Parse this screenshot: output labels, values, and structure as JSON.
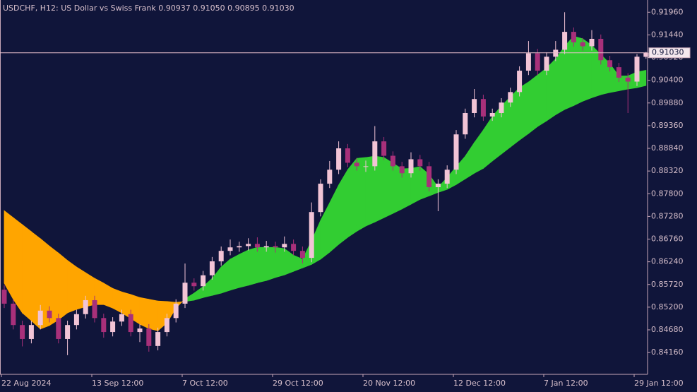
{
  "chart_data": {
    "type": "candlestick",
    "title": "USDCHF, H12:  US Dollar vs Swiss Frank  0.90937 0.91050 0.90895 0.91030",
    "categories": [
      "22 Aug 2024",
      null,
      null,
      null,
      null,
      null,
      null,
      null,
      null,
      null,
      "13 Sep 12:00",
      null,
      null,
      null,
      null,
      null,
      null,
      null,
      null,
      null,
      "7 Oct 12:00",
      null,
      null,
      null,
      null,
      null,
      null,
      null,
      null,
      null,
      "29 Oct 12:00",
      null,
      null,
      null,
      null,
      null,
      null,
      null,
      null,
      null,
      "20 Nov 12:00",
      null,
      null,
      null,
      null,
      null,
      null,
      null,
      null,
      null,
      "12 Dec 12:00",
      null,
      null,
      null,
      null,
      null,
      null,
      null,
      null,
      null,
      "7 Jan 12:00",
      null,
      null,
      null,
      null,
      null,
      null,
      null,
      null,
      null,
      "29 Jan 12:00",
      null
    ],
    "open": [
      0.856,
      0.8528,
      0.8479,
      0.8447,
      0.8479,
      0.8512,
      0.8495,
      0.8447,
      0.8479,
      0.8504,
      0.8536,
      0.8495,
      0.8463,
      0.8487,
      0.8504,
      0.8463,
      0.8471,
      0.8431,
      0.8463,
      0.8495,
      0.8528,
      0.8576,
      0.8568,
      0.8593,
      0.8625,
      0.8649,
      0.8657,
      0.866,
      0.8665,
      0.8657,
      0.866,
      0.8657,
      0.8665,
      0.8649,
      0.8633,
      0.8738,
      0.8803,
      0.8835,
      0.8884,
      0.8851,
      0.8843,
      0.8843,
      0.89,
      0.8867,
      0.8843,
      0.8827,
      0.8859,
      0.8843,
      0.8795,
      0.8803,
      0.8835,
      0.8916,
      0.8965,
      0.8997,
      0.8957,
      0.8965,
      0.8989,
      0.9013,
      0.9062,
      0.9102,
      0.9062,
      0.9094,
      0.911,
      0.9151,
      0.9127,
      0.9118,
      0.9135,
      0.9086,
      0.907,
      0.9046,
      0.9037,
      0.90937
    ],
    "high": [
      0.857,
      0.8538,
      0.8489,
      0.8489,
      0.8525,
      0.8522,
      0.8505,
      0.8489,
      0.8514,
      0.8546,
      0.8546,
      0.8505,
      0.8497,
      0.8514,
      0.8514,
      0.8481,
      0.8481,
      0.8473,
      0.8505,
      0.8538,
      0.862,
      0.8586,
      0.8603,
      0.8635,
      0.8659,
      0.8675,
      0.867,
      0.8678,
      0.868,
      0.8672,
      0.867,
      0.8682,
      0.8675,
      0.8659,
      0.876,
      0.8813,
      0.8855,
      0.89,
      0.8894,
      0.8861,
      0.8856,
      0.8935,
      0.891,
      0.8877,
      0.8853,
      0.8875,
      0.8869,
      0.8853,
      0.8813,
      0.8845,
      0.8926,
      0.8975,
      0.902,
      0.9007,
      0.8975,
      0.8999,
      0.9023,
      0.9072,
      0.913,
      0.9112,
      0.9104,
      0.913,
      0.9196,
      0.9161,
      0.9137,
      0.9155,
      0.9145,
      0.9096,
      0.908,
      0.9056,
      0.91,
      0.9105
    ],
    "low": [
      0.8518,
      0.8469,
      0.843,
      0.8437,
      0.8469,
      0.8485,
      0.8437,
      0.841,
      0.8469,
      0.8494,
      0.8485,
      0.845,
      0.8453,
      0.8477,
      0.8453,
      0.844,
      0.8418,
      0.8421,
      0.8453,
      0.8485,
      0.8518,
      0.8558,
      0.8558,
      0.8583,
      0.8615,
      0.8639,
      0.8647,
      0.865,
      0.8647,
      0.8647,
      0.8645,
      0.8647,
      0.8639,
      0.862,
      0.8623,
      0.8728,
      0.8793,
      0.8825,
      0.8841,
      0.8833,
      0.883,
      0.8833,
      0.8857,
      0.8833,
      0.8817,
      0.8817,
      0.8833,
      0.8785,
      0.874,
      0.8793,
      0.8825,
      0.8906,
      0.8955,
      0.8947,
      0.8947,
      0.8955,
      0.8979,
      0.9003,
      0.9052,
      0.9052,
      0.9052,
      0.9084,
      0.91,
      0.9117,
      0.9108,
      0.9108,
      0.9076,
      0.906,
      0.9036,
      0.8965,
      0.9027,
      0.90895
    ],
    "close": [
      0.8528,
      0.8479,
      0.8447,
      0.8479,
      0.8512,
      0.8495,
      0.8447,
      0.8479,
      0.8504,
      0.8536,
      0.8495,
      0.8463,
      0.8487,
      0.8504,
      0.8463,
      0.8471,
      0.8431,
      0.8463,
      0.8495,
      0.8528,
      0.8576,
      0.8568,
      0.8593,
      0.8625,
      0.8649,
      0.8657,
      0.866,
      0.8665,
      0.8657,
      0.866,
      0.8657,
      0.8665,
      0.8649,
      0.8633,
      0.8738,
      0.8803,
      0.8835,
      0.8884,
      0.8851,
      0.8843,
      0.8843,
      0.89,
      0.8867,
      0.8843,
      0.8827,
      0.8859,
      0.8843,
      0.8795,
      0.8803,
      0.8835,
      0.8916,
      0.8965,
      0.8997,
      0.8957,
      0.8965,
      0.8989,
      0.9013,
      0.9062,
      0.9102,
      0.9062,
      0.9094,
      0.911,
      0.9151,
      0.9127,
      0.9118,
      0.9135,
      0.9086,
      0.907,
      0.9046,
      0.9037,
      0.9094,
      0.9103
    ],
    "bull_color": "#f2c4d6",
    "bear_color": "#a8307a",
    "ma_fast": [
      0.8575,
      0.8538,
      0.8507,
      0.8489,
      0.847,
      0.8478,
      0.8491,
      0.8507,
      0.8515,
      0.8521,
      0.8526,
      0.8526,
      0.8518,
      0.8507,
      0.8494,
      0.8481,
      0.8471,
      0.8466,
      0.8484,
      0.8518,
      0.8539,
      0.8552,
      0.8567,
      0.8586,
      0.8612,
      0.863,
      0.8641,
      0.8651,
      0.8657,
      0.8657,
      0.8657,
      0.8654,
      0.8639,
      0.863,
      0.8672,
      0.8719,
      0.8759,
      0.88,
      0.8835,
      0.8861,
      0.8863,
      0.8866,
      0.8863,
      0.885,
      0.8837,
      0.8838,
      0.8842,
      0.8824,
      0.8795,
      0.8817,
      0.8842,
      0.8866,
      0.8897,
      0.8926,
      0.8957,
      0.8981,
      0.9002,
      0.9023,
      0.9036,
      0.9052,
      0.9068,
      0.9089,
      0.9118,
      0.9141,
      0.9135,
      0.912,
      0.9099,
      0.9078,
      0.905,
      0.905,
      0.9059,
      0.9063
    ],
    "ma_slow": [
      0.8741,
      0.8725,
      0.8709,
      0.8693,
      0.8677,
      0.866,
      0.8644,
      0.8627,
      0.8612,
      0.8599,
      0.8586,
      0.8575,
      0.8563,
      0.8555,
      0.8549,
      0.8542,
      0.8538,
      0.8534,
      0.8533,
      0.8531,
      0.8533,
      0.8536,
      0.8542,
      0.8547,
      0.8552,
      0.8559,
      0.8565,
      0.857,
      0.8576,
      0.8581,
      0.8588,
      0.8594,
      0.8602,
      0.861,
      0.8618,
      0.863,
      0.8646,
      0.8664,
      0.868,
      0.8694,
      0.8706,
      0.8715,
      0.8725,
      0.8735,
      0.8745,
      0.8756,
      0.8767,
      0.8775,
      0.8783,
      0.879,
      0.8801,
      0.8814,
      0.8827,
      0.8838,
      0.8855,
      0.8871,
      0.8887,
      0.8903,
      0.8918,
      0.8934,
      0.8947,
      0.8961,
      0.8973,
      0.8982,
      0.8992,
      0.9,
      0.9007,
      0.9012,
      0.9016,
      0.902,
      0.9023,
      0.9028
    ],
    "rising_fill_color": "#32cd32",
    "falling_fill_color": "#ffa500",
    "price_line": {
      "value": 0.9103,
      "label": "0.91030"
    },
    "ylim": [
      0.8366,
      0.9224
    ],
    "yticks": [
      {
        "value": 0.9196,
        "label": "0.91960"
      },
      {
        "value": 0.9144,
        "label": "0.91440"
      },
      {
        "value": 0.9092,
        "label": "0.90920"
      },
      {
        "value": 0.904,
        "label": "0.90400"
      },
      {
        "value": 0.8988,
        "label": "0.89880"
      },
      {
        "value": 0.8936,
        "label": "0.89360"
      },
      {
        "value": 0.8884,
        "label": "0.88840"
      },
      {
        "value": 0.8832,
        "label": "0.88320"
      },
      {
        "value": 0.878,
        "label": "0.87800"
      },
      {
        "value": 0.8728,
        "label": "0.87280"
      },
      {
        "value": 0.8676,
        "label": "0.86760"
      },
      {
        "value": 0.8624,
        "label": "0.86240"
      },
      {
        "value": 0.8572,
        "label": "0.85720"
      },
      {
        "value": 0.852,
        "label": "0.85200"
      },
      {
        "value": 0.8468,
        "label": "0.84680"
      },
      {
        "value": 0.8416,
        "label": "0.84160"
      }
    ]
  }
}
